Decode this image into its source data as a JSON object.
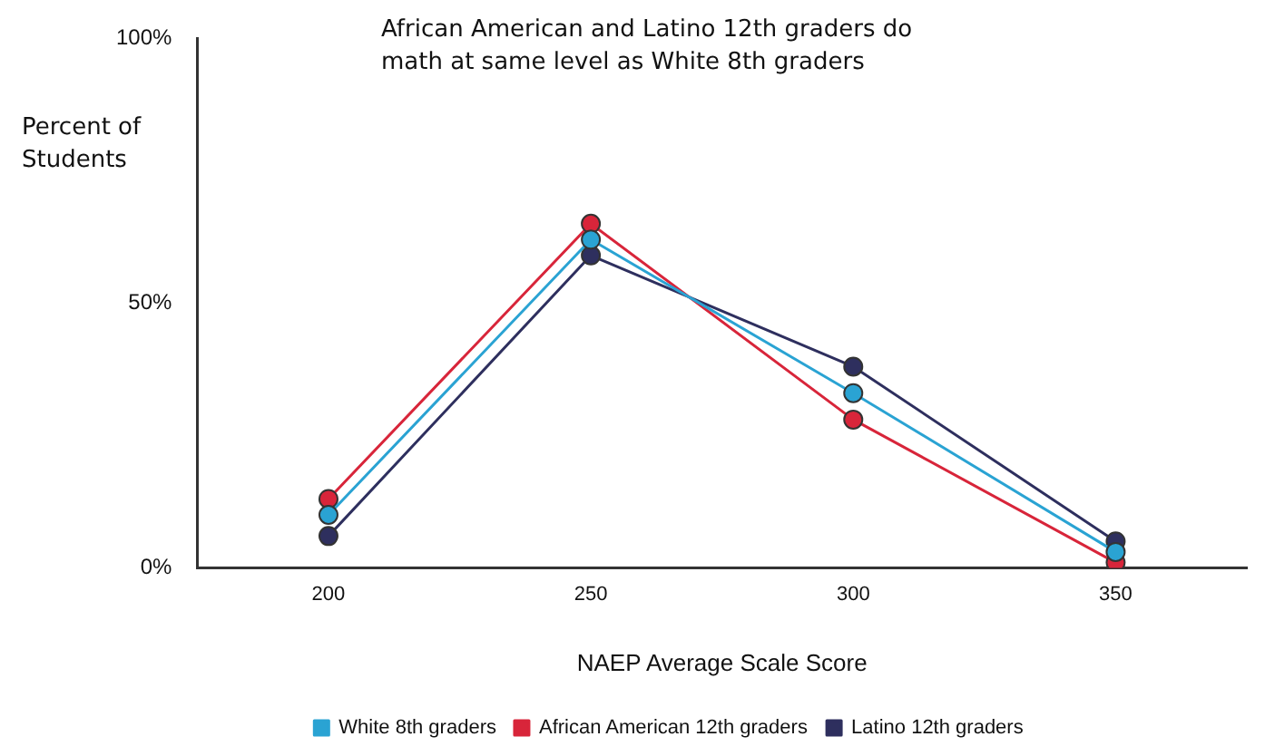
{
  "chart_data": {
    "type": "line",
    "title": "African American and Latino 12th graders do math at same level as White 8th graders",
    "xlabel": "NAEP Average Scale Score",
    "ylabel": "Percent of Students",
    "categories": [
      "200",
      "250",
      "300",
      "350"
    ],
    "series": [
      {
        "name": "White 8th graders",
        "color": "#2aa3d3",
        "values": [
          10,
          62,
          33,
          3
        ]
      },
      {
        "name": "African American 12th graders",
        "color": "#d8253a",
        "values": [
          13,
          65,
          28,
          1
        ]
      },
      {
        "name": "Latino 12th graders",
        "color": "#2e2f5e",
        "values": [
          6,
          59,
          38,
          5
        ]
      }
    ],
    "ylim": [
      0,
      100
    ],
    "yticks": [
      {
        "value": 0,
        "label": "0%"
      },
      {
        "value": 50,
        "label": "50%"
      },
      {
        "value": 100,
        "label": "100%"
      }
    ],
    "grid": false,
    "legend": "bottom",
    "marker": "circle",
    "line_style": "solid"
  }
}
